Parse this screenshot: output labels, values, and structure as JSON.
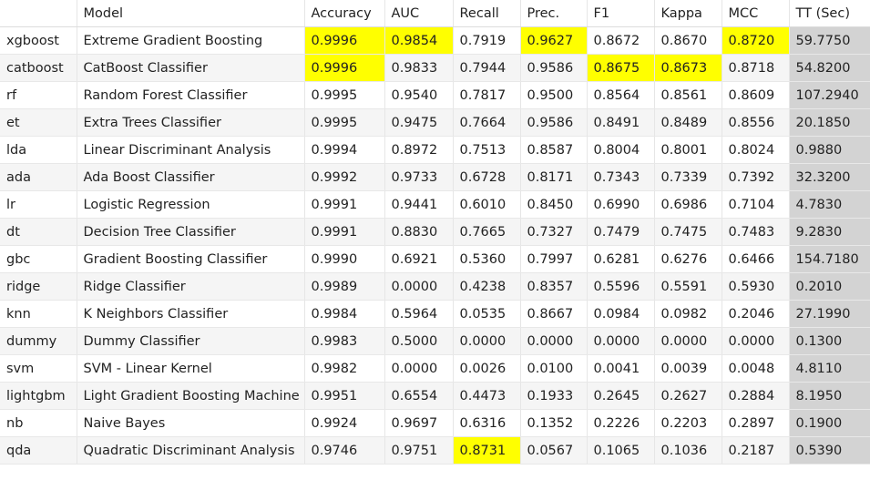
{
  "colors": {
    "highlight": "#ffff00",
    "tt_column": "#d3d3d3",
    "stripe": "#f5f5f5"
  },
  "headers": [
    "",
    "Model",
    "Accuracy",
    "AUC",
    "Recall",
    "Prec.",
    "F1",
    "Kappa",
    "MCC",
    "TT (Sec)"
  ],
  "rows": [
    {
      "id": "xgboost",
      "model": "Extreme Gradient Boosting",
      "values": [
        "0.9996",
        "0.9854",
        "0.7919",
        "0.9627",
        "0.8672",
        "0.8670",
        "0.8720",
        "59.7750"
      ],
      "highlight": [
        0,
        1,
        3,
        6
      ]
    },
    {
      "id": "catboost",
      "model": "CatBoost Classifier",
      "values": [
        "0.9996",
        "0.9833",
        "0.7944",
        "0.9586",
        "0.8675",
        "0.8673",
        "0.8718",
        "54.8200"
      ],
      "highlight": [
        0,
        4,
        5
      ]
    },
    {
      "id": "rf",
      "model": "Random Forest Classifier",
      "values": [
        "0.9995",
        "0.9540",
        "0.7817",
        "0.9500",
        "0.8564",
        "0.8561",
        "0.8609",
        "107.2940"
      ],
      "highlight": []
    },
    {
      "id": "et",
      "model": "Extra Trees Classifier",
      "values": [
        "0.9995",
        "0.9475",
        "0.7664",
        "0.9586",
        "0.8491",
        "0.8489",
        "0.8556",
        "20.1850"
      ],
      "highlight": []
    },
    {
      "id": "lda",
      "model": "Linear Discriminant Analysis",
      "values": [
        "0.9994",
        "0.8972",
        "0.7513",
        "0.8587",
        "0.8004",
        "0.8001",
        "0.8024",
        "0.9880"
      ],
      "highlight": []
    },
    {
      "id": "ada",
      "model": "Ada Boost Classifier",
      "values": [
        "0.9992",
        "0.9733",
        "0.6728",
        "0.8171",
        "0.7343",
        "0.7339",
        "0.7392",
        "32.3200"
      ],
      "highlight": []
    },
    {
      "id": "lr",
      "model": "Logistic Regression",
      "values": [
        "0.9991",
        "0.9441",
        "0.6010",
        "0.8450",
        "0.6990",
        "0.6986",
        "0.7104",
        "4.7830"
      ],
      "highlight": []
    },
    {
      "id": "dt",
      "model": "Decision Tree Classifier",
      "values": [
        "0.9991",
        "0.8830",
        "0.7665",
        "0.7327",
        "0.7479",
        "0.7475",
        "0.7483",
        "9.2830"
      ],
      "highlight": []
    },
    {
      "id": "gbc",
      "model": "Gradient Boosting Classifier",
      "values": [
        "0.9990",
        "0.6921",
        "0.5360",
        "0.7997",
        "0.6281",
        "0.6276",
        "0.6466",
        "154.7180"
      ],
      "highlight": []
    },
    {
      "id": "ridge",
      "model": "Ridge Classifier",
      "values": [
        "0.9989",
        "0.0000",
        "0.4238",
        "0.8357",
        "0.5596",
        "0.5591",
        "0.5930",
        "0.2010"
      ],
      "highlight": []
    },
    {
      "id": "knn",
      "model": "K Neighbors Classifier",
      "values": [
        "0.9984",
        "0.5964",
        "0.0535",
        "0.8667",
        "0.0984",
        "0.0982",
        "0.2046",
        "27.1990"
      ],
      "highlight": []
    },
    {
      "id": "dummy",
      "model": "Dummy Classifier",
      "values": [
        "0.9983",
        "0.5000",
        "0.0000",
        "0.0000",
        "0.0000",
        "0.0000",
        "0.0000",
        "0.1300"
      ],
      "highlight": []
    },
    {
      "id": "svm",
      "model": "SVM - Linear Kernel",
      "values": [
        "0.9982",
        "0.0000",
        "0.0026",
        "0.0100",
        "0.0041",
        "0.0039",
        "0.0048",
        "4.8110"
      ],
      "highlight": []
    },
    {
      "id": "lightgbm",
      "model": "Light Gradient Boosting Machine",
      "values": [
        "0.9951",
        "0.6554",
        "0.4473",
        "0.1933",
        "0.2645",
        "0.2627",
        "0.2884",
        "8.1950"
      ],
      "highlight": []
    },
    {
      "id": "nb",
      "model": "Naive Bayes",
      "values": [
        "0.9924",
        "0.9697",
        "0.6316",
        "0.1352",
        "0.2226",
        "0.2203",
        "0.2897",
        "0.1900"
      ],
      "highlight": []
    },
    {
      "id": "qda",
      "model": "Quadratic Discriminant Analysis",
      "values": [
        "0.9746",
        "0.9751",
        "0.8731",
        "0.0567",
        "0.1065",
        "0.1036",
        "0.2187",
        "0.5390"
      ],
      "highlight": [
        2
      ]
    }
  ]
}
